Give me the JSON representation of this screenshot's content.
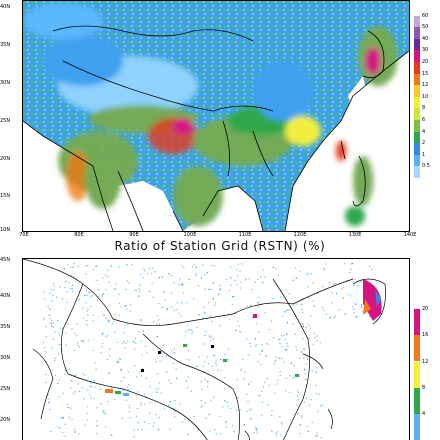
{
  "map1": {
    "lat_labels": [
      "40N",
      "35N",
      "30N",
      "25N",
      "20N",
      "15N",
      "10N"
    ],
    "lon_labels": [
      "70E",
      "80E",
      "90E",
      "100E",
      "110E",
      "120E",
      "130E",
      "140E"
    ],
    "colorbar": {
      "labels": [
        "60",
        "50",
        "40",
        "30",
        "20",
        "15",
        "12",
        "10",
        "8",
        "6",
        "4",
        "2",
        "1",
        "0.5"
      ],
      "colors": [
        "#ffffff",
        "#c1a6d8",
        "#8e5ab8",
        "#6a2899",
        "#d51484",
        "#e63a1f",
        "#f2791a",
        "#fac72b",
        "#f5ee35",
        "#cfe33a",
        "#7cc03e",
        "#2ea84b",
        "#2b8ee0",
        "#5bb0f5",
        "#a8d8ff"
      ]
    }
  },
  "map2": {
    "title": "Ratio of Station Grid (RSTN)   (%)",
    "lat_labels": [
      "45N",
      "40N",
      "35N",
      "30N",
      "25N",
      "20N"
    ],
    "colorbar": {
      "labels": [
        "20",
        "16",
        "12",
        "8",
        "4"
      ],
      "colors": [
        "#ffffff",
        "#d51484",
        "#f2791a",
        "#f5ee35",
        "#2ea84b",
        "#5bb0f5"
      ]
    }
  }
}
